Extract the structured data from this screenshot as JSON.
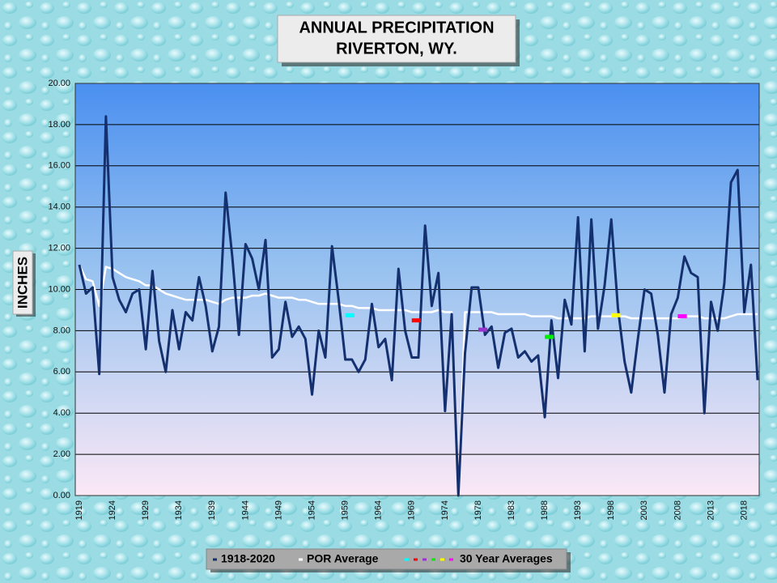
{
  "chart_data": {
    "type": "line",
    "title": [
      "ANNUAL PRECIPITATION",
      "RIVERTON, WY."
    ],
    "y_label": "INCHES",
    "categories": [
      "1919",
      null,
      null,
      null,
      null,
      "1924",
      null,
      null,
      null,
      null,
      "1929",
      null,
      null,
      null,
      null,
      "1934",
      null,
      null,
      null,
      null,
      "1939",
      null,
      null,
      null,
      null,
      "1944",
      null,
      null,
      null,
      null,
      "1949",
      null,
      null,
      null,
      null,
      "1954",
      null,
      null,
      null,
      null,
      "1959",
      null,
      null,
      null,
      null,
      "1964",
      null,
      null,
      null,
      null,
      "1969",
      null,
      null,
      null,
      null,
      "1974",
      null,
      null,
      null,
      null,
      "1978",
      null,
      null,
      null,
      null,
      "1983",
      null,
      null,
      null,
      null,
      "1988",
      null,
      null,
      null,
      null,
      "1993",
      null,
      null,
      null,
      null,
      "1998",
      null,
      null,
      null,
      null,
      "2003",
      null,
      null,
      null,
      null,
      "2008",
      null,
      null,
      null,
      null,
      "2013",
      null,
      null,
      null,
      null,
      "2018",
      null,
      null
    ],
    "series": [
      {
        "name": "1918-2020",
        "color": "#14306e",
        "values": [
          11.2,
          9.8,
          10.1,
          5.9,
          18.4,
          10.6,
          9.5,
          8.9,
          9.8,
          10.0,
          7.1,
          10.9,
          7.5,
          6.0,
          9.0,
          7.1,
          8.9,
          8.5,
          10.6,
          9.2,
          7.0,
          8.2,
          14.7,
          11.6,
          7.8,
          12.2,
          11.5,
          10.0,
          12.4,
          6.7,
          7.1,
          9.4,
          7.7,
          8.2,
          7.6,
          4.9,
          8.0,
          6.7,
          12.1,
          9.5,
          6.6,
          6.6,
          6.0,
          6.6,
          9.3,
          7.2,
          7.6,
          5.6,
          11.0,
          8.0,
          6.7,
          6.7,
          13.1,
          9.2,
          10.8,
          4.1,
          8.8,
          0.0,
          6.9,
          10.1,
          10.1,
          7.8,
          8.2,
          6.2,
          7.9,
          8.1,
          6.7,
          7.0,
          6.5,
          6.8,
          3.8,
          8.5,
          5.7,
          9.5,
          8.3,
          13.5,
          7.0,
          13.4,
          8.1,
          10.2,
          13.4,
          9.1,
          6.5,
          5.0,
          7.6,
          10.0,
          9.8,
          7.8,
          5.0,
          8.8,
          9.6,
          11.6,
          10.8,
          10.6,
          4.0,
          9.4,
          8.0,
          10.3,
          15.2,
          15.8,
          8.9,
          11.2,
          5.6
        ]
      },
      {
        "name": "POR Average",
        "color": "#ffffff",
        "values": [
          11.2,
          10.5,
          10.4,
          9.2,
          11.1,
          11.0,
          10.8,
          10.6,
          10.5,
          10.4,
          10.2,
          10.2,
          10.0,
          9.8,
          9.7,
          9.6,
          9.5,
          9.5,
          9.5,
          9.5,
          9.4,
          9.3,
          9.5,
          9.6,
          9.6,
          9.6,
          9.7,
          9.7,
          9.8,
          9.7,
          9.6,
          9.6,
          9.6,
          9.5,
          9.5,
          9.4,
          9.3,
          9.3,
          9.3,
          9.3,
          9.2,
          9.2,
          9.1,
          9.1,
          9.1,
          9.0,
          9.0,
          9.0,
          9.0,
          9.0,
          8.9,
          8.9,
          8.9,
          8.9,
          9.0,
          8.9,
          8.9,
          0.0,
          8.9,
          8.9,
          8.9,
          8.9,
          8.9,
          8.8,
          8.8,
          8.8,
          8.8,
          8.8,
          8.7,
          8.7,
          8.7,
          8.7,
          8.6,
          8.6,
          8.6,
          8.6,
          8.6,
          8.7,
          8.7,
          8.7,
          8.7,
          8.7,
          8.7,
          8.6,
          8.6,
          8.6,
          8.6,
          8.6,
          8.6,
          8.6,
          8.6,
          8.7,
          8.7,
          8.7,
          8.6,
          8.6,
          8.6,
          8.6,
          8.7,
          8.8,
          8.8,
          8.8,
          8.8
        ]
      }
    ],
    "thirty_year_averages": {
      "name": "30 Year Averages",
      "segments": [
        {
          "x": [
            40,
            41
          ],
          "value": 8.75,
          "color": "#00ffff"
        },
        {
          "x": [
            50,
            51
          ],
          "value": 8.5,
          "color": "#ff0000"
        },
        {
          "x": [
            60,
            61
          ],
          "value": 8.05,
          "color": "#9933cc"
        },
        {
          "x": [
            70,
            71
          ],
          "value": 7.7,
          "color": "#00ee00"
        },
        {
          "x": [
            80,
            81
          ],
          "value": 8.75,
          "color": "#ffff00"
        },
        {
          "x": [
            90,
            91
          ],
          "value": 8.7,
          "color": "#ff00ff"
        }
      ]
    },
    "ylim": [
      0,
      20
    ],
    "yticks": [
      {
        "value": 0,
        "label": "0.00"
      },
      {
        "value": 2,
        "label": "2.00"
      },
      {
        "value": 4,
        "label": "4.00"
      },
      {
        "value": 6,
        "label": "6.00"
      },
      {
        "value": 8,
        "label": "8.00"
      },
      {
        "value": 10,
        "label": "10.00"
      },
      {
        "value": 12,
        "label": "12.00"
      },
      {
        "value": 14,
        "label": "14.00"
      },
      {
        "value": 16,
        "label": "16.00"
      },
      {
        "value": 18,
        "label": "18.00"
      },
      {
        "value": 20,
        "label": "20.00"
      }
    ],
    "grid": true
  }
}
